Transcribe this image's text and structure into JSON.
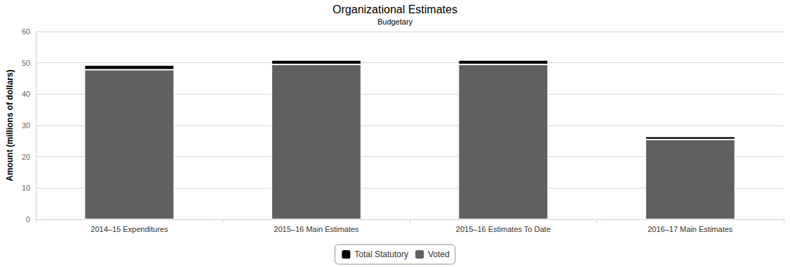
{
  "chart_data": {
    "type": "bar",
    "title": "Organizational Estimates",
    "subtitle": "Budgetary",
    "y_label": "Amount (millions of dollars)",
    "categories": [
      "2014–15 Expenditures",
      "2015–16 Main Estimates",
      "2015–16 Estimates To Date",
      "2016–17 Main Estimates"
    ],
    "series": [
      {
        "name": "Total Statutory",
        "color": "#000000",
        "values": [
          1.5,
          1.4,
          1.4,
          1.0
        ]
      },
      {
        "name": "Voted",
        "color": "#606060",
        "values": [
          47.8,
          49.5,
          49.5,
          25.5
        ]
      }
    ],
    "stacked": true,
    "ylim": [
      0,
      60
    ],
    "yticks": [
      0,
      10,
      20,
      30,
      40,
      50,
      60
    ],
    "grid": true,
    "legend": "bottom"
  }
}
